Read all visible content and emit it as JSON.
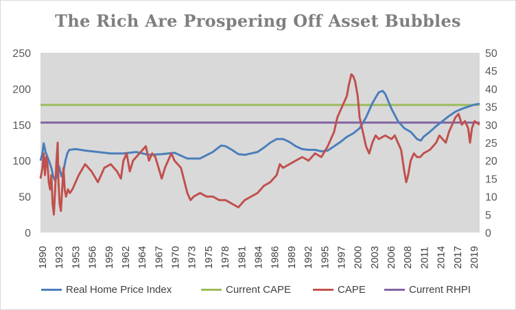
{
  "chart_data": {
    "type": "line",
    "title": "The Rich Are Prospering Off Asset Bubbles",
    "categories": [
      "1890",
      "1923",
      "1953",
      "1956",
      "1959",
      "1962",
      "1964",
      "1967",
      "1970",
      "1973",
      "1975",
      "1978",
      "1981",
      "1984",
      "1986",
      "1989",
      "1992",
      "1995",
      "1997",
      "2000",
      "2003",
      "2006",
      "2008",
      "2011",
      "2014",
      "2017",
      "2019"
    ],
    "y_left": {
      "ticks": [
        "0",
        "50",
        "100",
        "150",
        "200",
        "250"
      ],
      "lim": [
        0,
        250
      ]
    },
    "y_right": {
      "ticks": [
        "0",
        "5",
        "10",
        "15",
        "20",
        "25",
        "30",
        "35",
        "40",
        "45",
        "50"
      ],
      "lim": [
        0,
        50
      ]
    },
    "grid": false,
    "legend_position": "bottom",
    "series": [
      {
        "name": "Real Home Price Index",
        "axis": "left",
        "color": "#4a7ebb",
        "values": [
          [
            0,
            100
          ],
          [
            0.3,
            110
          ],
          [
            0.5,
            124
          ],
          [
            0.8,
            112
          ],
          [
            1.1,
            105
          ],
          [
            1.4,
            98
          ],
          [
            1.7,
            90
          ],
          [
            2.0,
            78
          ],
          [
            2.3,
            72
          ],
          [
            2.6,
            80
          ],
          [
            2.9,
            92
          ],
          [
            3.1,
            85
          ],
          [
            3.3,
            78
          ],
          [
            3.6,
            85
          ],
          [
            3.9,
            100
          ],
          [
            4.2,
            110
          ],
          [
            4.5,
            115
          ],
          [
            5.5,
            116
          ],
          [
            7,
            114
          ],
          [
            9,
            112
          ],
          [
            11,
            110
          ],
          [
            13,
            110
          ],
          [
            15,
            112
          ],
          [
            17,
            108
          ],
          [
            19,
            109
          ],
          [
            21,
            111
          ],
          [
            23,
            103
          ],
          [
            25,
            103
          ],
          [
            27,
            112
          ],
          [
            28.3,
            121
          ],
          [
            29,
            120
          ],
          [
            30,
            115
          ],
          [
            31,
            109
          ],
          [
            32,
            108
          ],
          [
            33,
            110
          ],
          [
            34,
            112
          ],
          [
            35,
            118
          ],
          [
            36,
            125
          ],
          [
            37,
            130
          ],
          [
            38,
            130
          ],
          [
            39,
            126
          ],
          [
            40,
            120
          ],
          [
            41,
            116
          ],
          [
            42,
            115
          ],
          [
            43,
            115
          ],
          [
            44,
            113
          ],
          [
            45,
            114
          ],
          [
            46,
            120
          ],
          [
            47,
            126
          ],
          [
            48,
            133
          ],
          [
            49,
            138
          ],
          [
            50,
            145
          ],
          [
            51,
            160
          ],
          [
            52,
            180
          ],
          [
            53,
            195
          ],
          [
            53.6,
            197
          ],
          [
            54,
            193
          ],
          [
            55,
            172
          ],
          [
            56,
            155
          ],
          [
            57,
            145
          ],
          [
            58,
            140
          ],
          [
            59,
            130
          ],
          [
            59.6,
            128
          ],
          [
            60,
            133
          ],
          [
            61,
            140
          ],
          [
            62,
            148
          ],
          [
            63,
            155
          ],
          [
            64,
            162
          ],
          [
            65,
            168
          ],
          [
            66,
            172
          ],
          [
            67,
            175
          ],
          [
            68,
            178
          ],
          [
            68.8,
            179
          ]
        ]
      },
      {
        "name": "Current CAPE",
        "axis": "right",
        "color": "#9bbb59",
        "values": [
          [
            0,
            35.5
          ],
          [
            68.8,
            35.5
          ]
        ]
      },
      {
        "name": "CAPE",
        "axis": "right",
        "color": "#c0504d",
        "values": [
          [
            0,
            15
          ],
          [
            0.3,
            18
          ],
          [
            0.5,
            22
          ],
          [
            0.7,
            16
          ],
          [
            0.9,
            21
          ],
          [
            1.1,
            19
          ],
          [
            1.3,
            14
          ],
          [
            1.5,
            12
          ],
          [
            1.7,
            16
          ],
          [
            1.9,
            8
          ],
          [
            2.1,
            5
          ],
          [
            2.3,
            12
          ],
          [
            2.5,
            20
          ],
          [
            2.7,
            25
          ],
          [
            2.8,
            15
          ],
          [
            3.0,
            8
          ],
          [
            3.2,
            6
          ],
          [
            3.4,
            12
          ],
          [
            3.6,
            18
          ],
          [
            3.8,
            12
          ],
          [
            4.0,
            10
          ],
          [
            4.3,
            12
          ],
          [
            4.6,
            11
          ],
          [
            5,
            12
          ],
          [
            6,
            16
          ],
          [
            7,
            19
          ],
          [
            8,
            17
          ],
          [
            9,
            14
          ],
          [
            10,
            18
          ],
          [
            11,
            19
          ],
          [
            12,
            17
          ],
          [
            12.6,
            15
          ],
          [
            13,
            20
          ],
          [
            13.5,
            22
          ],
          [
            14,
            17
          ],
          [
            14.5,
            20
          ],
          [
            15,
            21
          ],
          [
            16,
            23
          ],
          [
            16.5,
            24
          ],
          [
            17,
            20
          ],
          [
            17.5,
            22
          ],
          [
            18,
            21
          ],
          [
            18.5,
            18
          ],
          [
            19,
            15
          ],
          [
            19.5,
            18
          ],
          [
            20,
            20
          ],
          [
            20.5,
            22
          ],
          [
            21,
            20
          ],
          [
            22,
            18
          ],
          [
            23,
            11
          ],
          [
            23.5,
            9
          ],
          [
            24,
            10
          ],
          [
            25,
            11
          ],
          [
            26,
            10
          ],
          [
            27,
            10
          ],
          [
            28,
            9
          ],
          [
            29,
            9
          ],
          [
            30,
            8
          ],
          [
            31,
            7
          ],
          [
            32,
            9
          ],
          [
            33,
            10
          ],
          [
            34,
            11
          ],
          [
            35,
            13
          ],
          [
            36,
            14
          ],
          [
            37,
            16
          ],
          [
            37.5,
            19
          ],
          [
            38,
            18
          ],
          [
            39,
            19
          ],
          [
            40,
            20
          ],
          [
            41,
            21
          ],
          [
            42,
            20
          ],
          [
            43,
            22
          ],
          [
            44,
            21
          ],
          [
            45,
            24
          ],
          [
            46,
            28
          ],
          [
            46.5,
            32
          ],
          [
            47,
            34
          ],
          [
            47.5,
            36
          ],
          [
            48,
            38
          ],
          [
            48.3,
            41
          ],
          [
            48.7,
            44
          ],
          [
            49,
            43.5
          ],
          [
            49.3,
            42
          ],
          [
            49.7,
            38
          ],
          [
            50,
            32
          ],
          [
            50.5,
            28
          ],
          [
            51,
            24
          ],
          [
            51.5,
            22
          ],
          [
            52,
            25
          ],
          [
            52.5,
            27
          ],
          [
            53,
            26
          ],
          [
            54,
            27
          ],
          [
            55,
            26
          ],
          [
            55.5,
            27
          ],
          [
            56,
            25
          ],
          [
            56.5,
            23
          ],
          [
            57,
            17
          ],
          [
            57.3,
            14
          ],
          [
            57.6,
            16
          ],
          [
            58,
            20
          ],
          [
            58.5,
            22
          ],
          [
            59,
            21
          ],
          [
            59.5,
            21
          ],
          [
            60,
            22
          ],
          [
            61,
            23
          ],
          [
            61.5,
            24
          ],
          [
            62,
            25
          ],
          [
            62.5,
            27
          ],
          [
            63,
            26
          ],
          [
            63.5,
            25
          ],
          [
            64,
            28
          ],
          [
            65,
            32
          ],
          [
            65.5,
            33
          ],
          [
            66,
            30
          ],
          [
            66.5,
            31
          ],
          [
            67,
            29
          ],
          [
            67.3,
            25
          ],
          [
            67.6,
            29
          ],
          [
            68,
            31
          ],
          [
            68.8,
            30
          ]
        ]
      },
      {
        "name": "Current RHPI",
        "axis": "left",
        "color": "#8064a2",
        "values": [
          [
            0,
            153
          ],
          [
            68.8,
            153
          ]
        ]
      }
    ]
  },
  "legend": {
    "items": [
      "Real Home Price Index",
      "Current CAPE",
      "CAPE",
      "Current RHPI"
    ]
  }
}
